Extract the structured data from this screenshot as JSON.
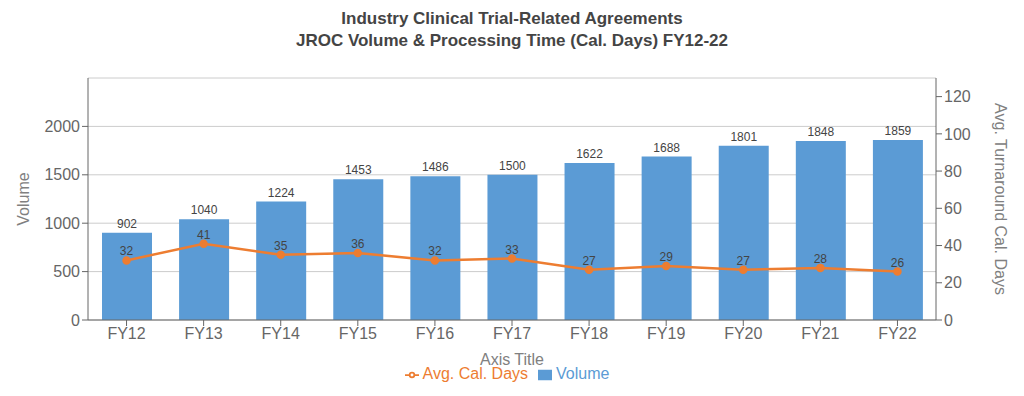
{
  "chart_data": {
    "type": "bar",
    "title": "Industry Clinical Trial-Related Agreements",
    "subtitle": "JROC Volume & Processing Time (Cal. Days) FY12-22",
    "xlabel": "Axis Title",
    "ylabel": "Volume",
    "y2label": "Avg. Turnaround Cal. Days",
    "categories": [
      "FY12",
      "FY13",
      "FY14",
      "FY15",
      "FY16",
      "FY17",
      "FY18",
      "FY19",
      "FY20",
      "FY21",
      "FY22"
    ],
    "series": [
      {
        "name": "Volume",
        "type": "bar",
        "color": "#5B9BD5",
        "values": [
          902,
          1040,
          1224,
          1453,
          1486,
          1500,
          1622,
          1688,
          1801,
          1848,
          1859
        ]
      },
      {
        "name": "Avg. Cal. Days",
        "type": "line",
        "axis": "y2",
        "color": "#ED7D31",
        "marker": "circle",
        "values": [
          32,
          41,
          35,
          36,
          32,
          33,
          27,
          29,
          27,
          28,
          26
        ]
      }
    ],
    "ylim": [
      0,
      2500
    ],
    "yticks": [
      0,
      500,
      1000,
      1500,
      2000
    ],
    "y2lim": [
      0,
      130
    ],
    "y2ticks": [
      0,
      20,
      40,
      60,
      80,
      100,
      120
    ],
    "grid": true,
    "legend": "bottom",
    "data_labels": true
  }
}
